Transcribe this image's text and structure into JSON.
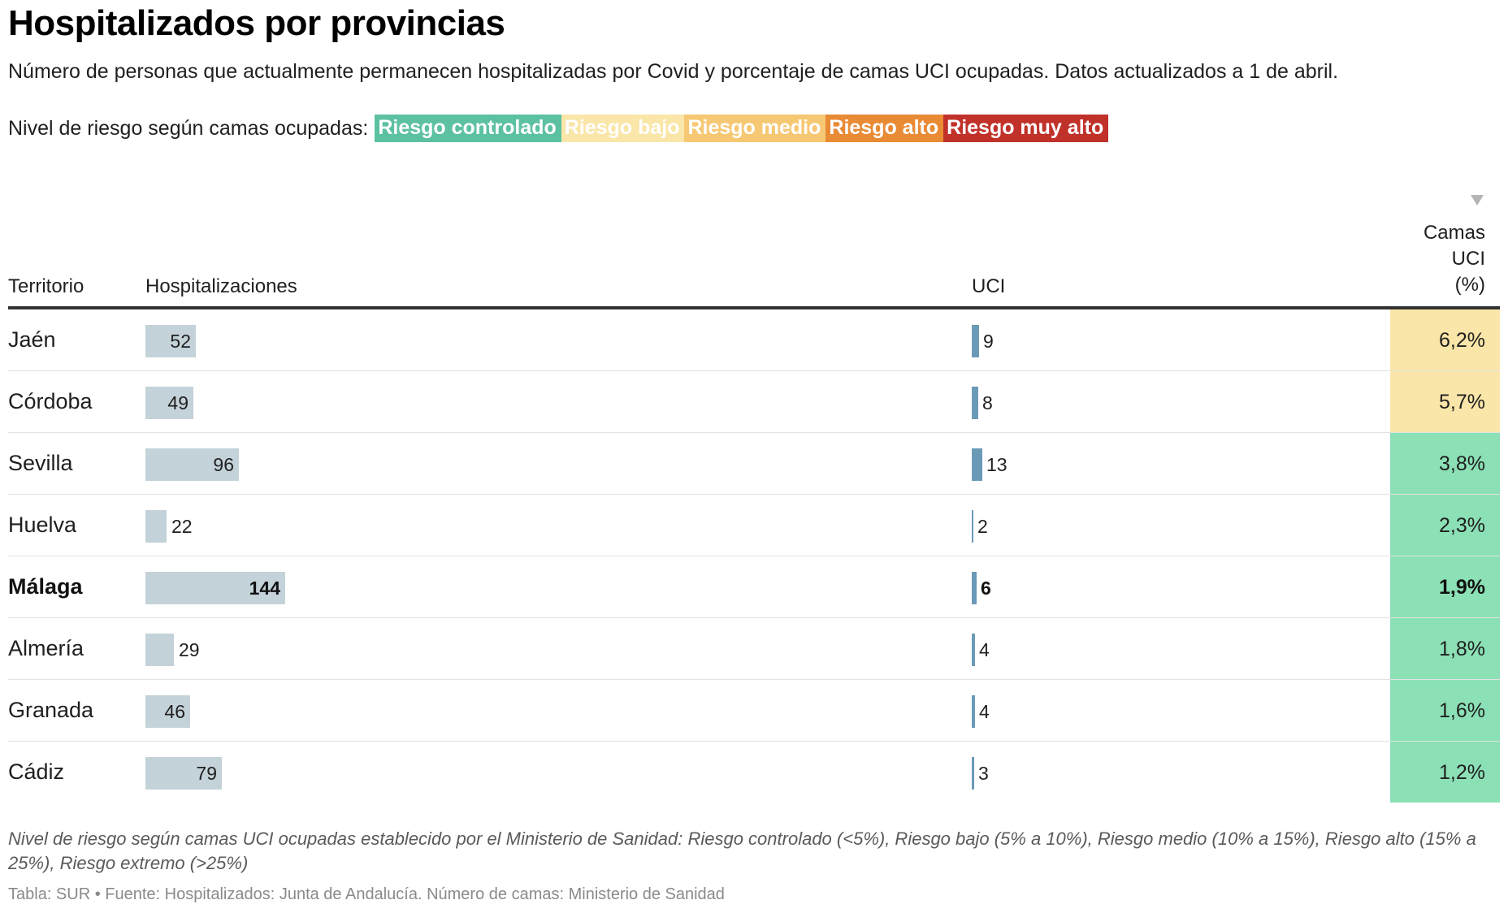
{
  "header": {
    "title": "Hospitalizados por provincias",
    "description": "Número de personas que actualmente permanecen hospitalizadas por Covid y porcentaje de camas UCI ocupadas. Datos actualizados a 1 de abril."
  },
  "legend": {
    "label": "Nivel de riesgo según camas ocupadas:",
    "items": [
      {
        "label": "Riesgo controlado",
        "color": "#5cc0a3"
      },
      {
        "label": "Riesgo bajo",
        "color": "#fae6a8"
      },
      {
        "label": "Riesgo medio",
        "color": "#f6c873"
      },
      {
        "label": "Riesgo alto",
        "color": "#e98a35"
      },
      {
        "label": "Riesgo muy alto",
        "color": "#c0312a"
      }
    ]
  },
  "table_header": {
    "territorio": "Territorio",
    "hospitalizaciones": "Hospitalizaciones",
    "uci": "UCI",
    "camas_line1": "Camas",
    "camas_line2": "UCI",
    "camas_line3": "(%)"
  },
  "chart_data": {
    "type": "table",
    "columns": [
      "Territorio",
      "Hospitalizaciones",
      "UCI",
      "Camas UCI (%)"
    ],
    "hosp_max": 144,
    "uci_max": 13,
    "rows": [
      {
        "territorio": "Jaén",
        "hospitalizaciones": 52,
        "uci": 9,
        "camas": "6,2%",
        "camas_color": "#fae6a8",
        "highlight": false
      },
      {
        "territorio": "Córdoba",
        "hospitalizaciones": 49,
        "uci": 8,
        "camas": "5,7%",
        "camas_color": "#fae6a8",
        "highlight": false
      },
      {
        "territorio": "Sevilla",
        "hospitalizaciones": 96,
        "uci": 13,
        "camas": "3,8%",
        "camas_color": "#8be0b5",
        "highlight": false
      },
      {
        "territorio": "Huelva",
        "hospitalizaciones": 22,
        "uci": 2,
        "camas": "2,3%",
        "camas_color": "#8be0b5",
        "highlight": false
      },
      {
        "territorio": "Málaga",
        "hospitalizaciones": 144,
        "uci": 6,
        "camas": "1,9%",
        "camas_color": "#8be0b5",
        "highlight": true
      },
      {
        "territorio": "Almería",
        "hospitalizaciones": 29,
        "uci": 4,
        "camas": "1,8%",
        "camas_color": "#8be0b5",
        "highlight": false
      },
      {
        "territorio": "Granada",
        "hospitalizaciones": 46,
        "uci": 4,
        "camas": "1,6%",
        "camas_color": "#8be0b5",
        "highlight": false
      },
      {
        "territorio": "Cádiz",
        "hospitalizaciones": 79,
        "uci": 3,
        "camas": "1,2%",
        "camas_color": "#8be0b5",
        "highlight": false
      }
    ]
  },
  "footer": {
    "note": "Nivel de riesgo según camas UCI ocupadas establecido por el Ministerio de Sanidad: Riesgo controlado (<5%), Riesgo bajo (5% a 10%), Riesgo medio (10% a 15%), Riesgo alto (15% a 25%), Riesgo extremo (>25%)",
    "source": "Tabla: SUR • Fuente: Hospitalizados: Junta de Andalucía. Número de camas: Ministerio de Sanidad"
  }
}
